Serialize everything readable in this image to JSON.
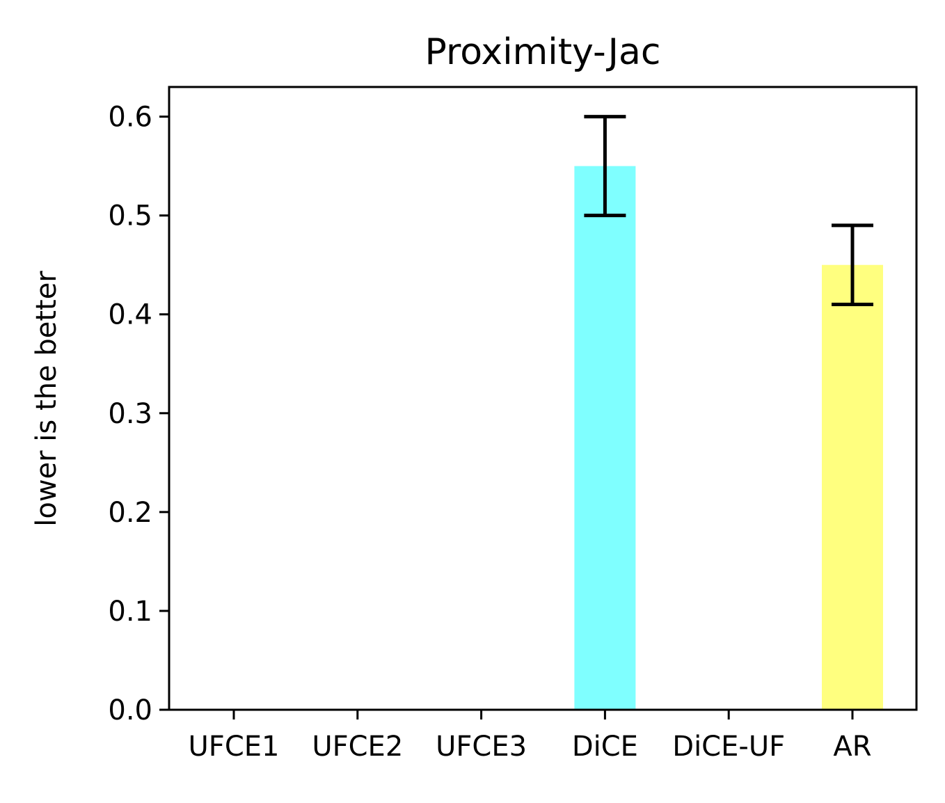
{
  "chart_data": {
    "type": "bar",
    "title": "Proximity-Jac",
    "xlabel": "",
    "ylabel": "lower is the better",
    "categories": [
      "UFCE1",
      "UFCE2",
      "UFCE3",
      "DiCE",
      "DiCE-UF",
      "AR"
    ],
    "values": [
      0.0,
      0.0,
      0.0,
      0.55,
      0.0,
      0.45
    ],
    "error_low": [
      0.0,
      0.0,
      0.0,
      0.5,
      0.0,
      0.41
    ],
    "error_high": [
      0.0,
      0.0,
      0.0,
      0.6,
      0.0,
      0.49
    ],
    "bar_colors": [
      "#7fbfff",
      "#7fff7f",
      "#ff7f7f",
      "#7fffff",
      "#ff7fff",
      "#ffff7f"
    ],
    "error_color": "#000000",
    "ylim": [
      0.0,
      0.63
    ],
    "yticks": [
      0.0,
      0.1,
      0.2,
      0.3,
      0.4,
      0.5,
      0.6
    ],
    "ytick_labels": [
      "0.0",
      "0.1",
      "0.2",
      "0.3",
      "0.4",
      "0.5",
      "0.6"
    ],
    "grid": false,
    "legend": "none"
  }
}
